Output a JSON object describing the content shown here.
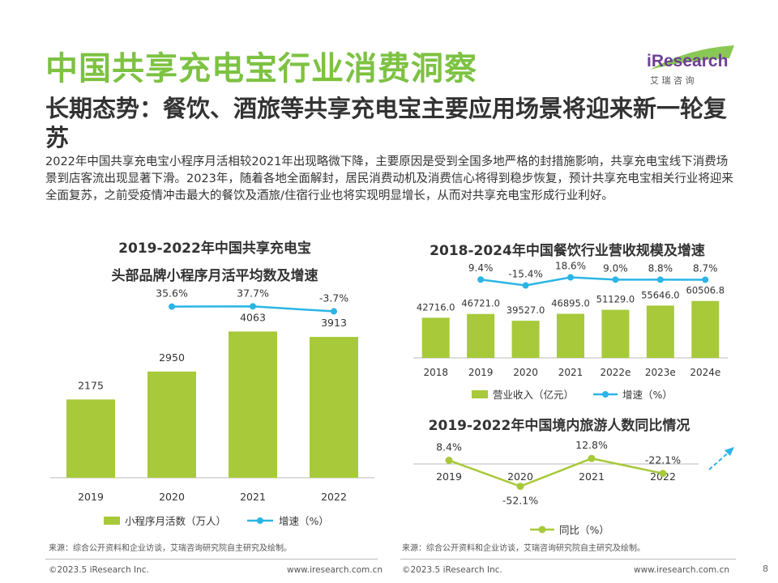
{
  "header": {
    "title": "中国共享充电宝行业消费洞察",
    "subtitle": "长期态势：餐饮、酒旅等共享充电宝主要应用场景将迎来新一轮复苏",
    "body": "2022年中国共享充电宝小程序月活相较2021年出现略微下降，主要原因是受到全国多地严格的封措施影响，共享充电宝线下消费场景到店客流出现显著下滑。2023年，随着各地全面解封，居民消费动机及消费信心将得到稳步恢复，预计共享充电宝相关行业将迎来全面复苏，之前受疫情冲击最大的餐饮及酒旅/住宿行业也将实现明显增长，从而对共享充电宝形成行业利好。"
  },
  "logo": {
    "text": "iResearch",
    "cn": "艾 瑞 咨 询",
    "colors": {
      "green": "#7dc242",
      "purple": "#6e3e96"
    }
  },
  "colors": {
    "bar": "#a7c93a",
    "line_blue": "#2bb5e6",
    "line_green": "#a7c93a",
    "title_green": "#7dc242"
  },
  "chart_data": [
    {
      "type": "bar",
      "title": "2019-2022年中国共享充电宝",
      "subtitle": "头部品牌小程序月活平均数及增速",
      "categories": [
        "2019",
        "2020",
        "2021",
        "2022"
      ],
      "series": [
        {
          "name": "小程序月活数（万人）",
          "kind": "bar",
          "values": [
            2175,
            2950,
            4063,
            3913
          ]
        },
        {
          "name": "增速（%）",
          "kind": "line",
          "values": [
            null,
            35.6,
            37.7,
            -3.7
          ],
          "labels": [
            "",
            "35.6%",
            "37.7%",
            "-3.7%"
          ]
        }
      ]
    },
    {
      "type": "bar",
      "title": "2018-2024年中国餐饮行业营收规模及增速",
      "categories": [
        "2018",
        "2019",
        "2020",
        "2021",
        "2022e",
        "2023e",
        "2024e"
      ],
      "series": [
        {
          "name": "营业收入（亿元）",
          "kind": "bar",
          "values": [
            42716.0,
            46721.0,
            39527.0,
            46895.0,
            51129.0,
            55646.0,
            60506.8
          ],
          "labels": [
            "42716.0",
            "46721.0",
            "39527.0",
            "46895.0",
            "51129.0",
            "55646.0",
            "60506.8"
          ]
        },
        {
          "name": "增速（%）",
          "kind": "line",
          "values": [
            null,
            9.4,
            -15.4,
            18.6,
            9.0,
            8.8,
            8.7
          ],
          "labels": [
            "",
            "9.4%",
            "-15.4%",
            "18.6%",
            "9.0%",
            "8.8%",
            "8.7%"
          ]
        }
      ]
    },
    {
      "type": "line",
      "title": "2019-2022年中国境内旅游人数同比情况",
      "categories": [
        "2019",
        "2020",
        "2021",
        "2022"
      ],
      "series": [
        {
          "name": "同比（%）",
          "values": [
            8.4,
            -52.1,
            12.8,
            -22.1
          ],
          "labels": [
            "8.4%",
            "-52.1%",
            "12.8%",
            "-22.1%"
          ]
        }
      ],
      "annotation": "dashed upward arrow indicating expected recovery"
    }
  ],
  "footer": {
    "source_left": "来源：综合公开资料和企业访谈，艾瑞咨询研究院自主研究及绘制。",
    "source_right": "来源：综合公开资料和企业访谈，艾瑞咨询研究院自主研究及绘制。",
    "copyright_left": "©2023.5 iResearch Inc.",
    "url_left": "www.iresearch.com.cn",
    "copyright_right": "©2023.5 iResearch Inc.",
    "url_right": "www.iresearch.com.cn",
    "page": "8"
  }
}
